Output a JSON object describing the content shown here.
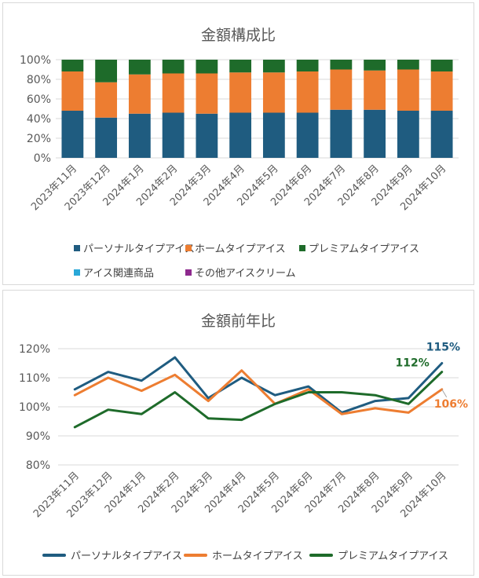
{
  "chart_data": [
    {
      "type": "bar",
      "stacked": true,
      "title": "金額構成比",
      "categories": [
        "2023年11月",
        "2023年12月",
        "2024年1月",
        "2024年2月",
        "2024年3月",
        "2024年4月",
        "2024年5月",
        "2024年6月",
        "2024年7月",
        "2024年8月",
        "2024年9月",
        "2024年10月"
      ],
      "ylim": [
        0,
        100
      ],
      "yticks": [
        "0%",
        "20%",
        "40%",
        "60%",
        "80%",
        "100%"
      ],
      "series": [
        {
          "name": "パーソナルタイプアイス",
          "color": "#1f5c80",
          "values": [
            48,
            41,
            45,
            46,
            45,
            46,
            46,
            46,
            49,
            49,
            48,
            48
          ]
        },
        {
          "name": "ホームタイプアイス",
          "color": "#ed7d31",
          "values": [
            40,
            36,
            40,
            40,
            41,
            41,
            41,
            42,
            41,
            40,
            42,
            40
          ]
        },
        {
          "name": "プレミアムタイプアイス",
          "color": "#1e6b2a",
          "values": [
            12,
            23,
            15,
            14,
            14,
            13,
            13,
            12,
            10,
            11,
            10,
            12
          ]
        },
        {
          "name": "アイス関連商品",
          "color": "#29a8d8",
          "values": [
            0,
            0,
            0,
            0,
            0,
            0,
            0,
            0,
            0,
            0,
            0,
            0
          ]
        },
        {
          "name": "その他アイスクリーム",
          "color": "#8e2a8e",
          "values": [
            0,
            0,
            0,
            0,
            0,
            0,
            0,
            0,
            0,
            0,
            0,
            0
          ]
        }
      ],
      "grid": true,
      "legend": "bottom"
    },
    {
      "type": "line",
      "title": "金額前年比",
      "categories": [
        "2023年11月",
        "2023年12月",
        "2024年1月",
        "2024年2月",
        "2024年3月",
        "2024年4月",
        "2024年5月",
        "2024年6月",
        "2024年7月",
        "2024年8月",
        "2024年9月",
        "2024年10月"
      ],
      "ylim": [
        80,
        120
      ],
      "yticks": [
        "80%",
        "90%",
        "100%",
        "110%",
        "120%"
      ],
      "series": [
        {
          "name": "パーソナルタイプアイス",
          "color": "#1f5c80",
          "values": [
            106,
            112,
            109,
            117,
            103,
            110,
            104,
            107,
            98,
            102,
            103,
            115
          ],
          "end_label": "115%"
        },
        {
          "name": "ホームタイプアイス",
          "color": "#ed7d31",
          "values": [
            104,
            110,
            105.5,
            111,
            102,
            112.5,
            101,
            106,
            97.5,
            99.5,
            98,
            106
          ],
          "end_label": "106%"
        },
        {
          "name": "プレミアムタイプアイス",
          "color": "#1e6b2a",
          "values": [
            93,
            99,
            97.5,
            105,
            96,
            95.5,
            101,
            105,
            105,
            104,
            101,
            112
          ],
          "end_label": "112%"
        }
      ],
      "grid": true,
      "legend": "bottom"
    }
  ]
}
